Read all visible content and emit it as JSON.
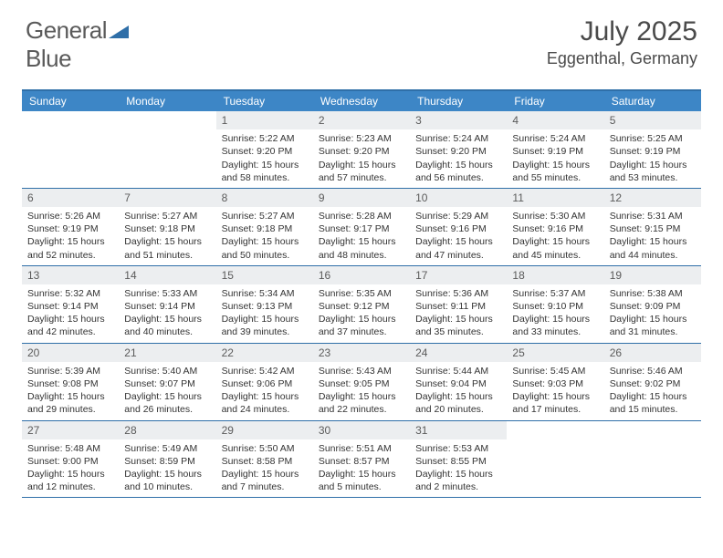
{
  "brand": {
    "part1": "General",
    "part2": "Blue"
  },
  "title": "July 2025",
  "location": "Eggenthal, Germany",
  "colors": {
    "header_bg": "#3d86c6",
    "border": "#2f6fa8",
    "daynum_bg": "#eceef0",
    "text": "#333333",
    "brand_grey": "#5a5a5a",
    "brand_blue": "#2f6fa8"
  },
  "day_headers": [
    "Sunday",
    "Monday",
    "Tuesday",
    "Wednesday",
    "Thursday",
    "Friday",
    "Saturday"
  ],
  "weeks": [
    [
      {
        "n": "",
        "sr": "",
        "ss": "",
        "dl": "",
        "empty": true
      },
      {
        "n": "",
        "sr": "",
        "ss": "",
        "dl": "",
        "empty": true
      },
      {
        "n": "1",
        "sr": "5:22 AM",
        "ss": "9:20 PM",
        "dl": "15 hours and 58 minutes."
      },
      {
        "n": "2",
        "sr": "5:23 AM",
        "ss": "9:20 PM",
        "dl": "15 hours and 57 minutes."
      },
      {
        "n": "3",
        "sr": "5:24 AM",
        "ss": "9:20 PM",
        "dl": "15 hours and 56 minutes."
      },
      {
        "n": "4",
        "sr": "5:24 AM",
        "ss": "9:19 PM",
        "dl": "15 hours and 55 minutes."
      },
      {
        "n": "5",
        "sr": "5:25 AM",
        "ss": "9:19 PM",
        "dl": "15 hours and 53 minutes."
      }
    ],
    [
      {
        "n": "6",
        "sr": "5:26 AM",
        "ss": "9:19 PM",
        "dl": "15 hours and 52 minutes."
      },
      {
        "n": "7",
        "sr": "5:27 AM",
        "ss": "9:18 PM",
        "dl": "15 hours and 51 minutes."
      },
      {
        "n": "8",
        "sr": "5:27 AM",
        "ss": "9:18 PM",
        "dl": "15 hours and 50 minutes."
      },
      {
        "n": "9",
        "sr": "5:28 AM",
        "ss": "9:17 PM",
        "dl": "15 hours and 48 minutes."
      },
      {
        "n": "10",
        "sr": "5:29 AM",
        "ss": "9:16 PM",
        "dl": "15 hours and 47 minutes."
      },
      {
        "n": "11",
        "sr": "5:30 AM",
        "ss": "9:16 PM",
        "dl": "15 hours and 45 minutes."
      },
      {
        "n": "12",
        "sr": "5:31 AM",
        "ss": "9:15 PM",
        "dl": "15 hours and 44 minutes."
      }
    ],
    [
      {
        "n": "13",
        "sr": "5:32 AM",
        "ss": "9:14 PM",
        "dl": "15 hours and 42 minutes."
      },
      {
        "n": "14",
        "sr": "5:33 AM",
        "ss": "9:14 PM",
        "dl": "15 hours and 40 minutes."
      },
      {
        "n": "15",
        "sr": "5:34 AM",
        "ss": "9:13 PM",
        "dl": "15 hours and 39 minutes."
      },
      {
        "n": "16",
        "sr": "5:35 AM",
        "ss": "9:12 PM",
        "dl": "15 hours and 37 minutes."
      },
      {
        "n": "17",
        "sr": "5:36 AM",
        "ss": "9:11 PM",
        "dl": "15 hours and 35 minutes."
      },
      {
        "n": "18",
        "sr": "5:37 AM",
        "ss": "9:10 PM",
        "dl": "15 hours and 33 minutes."
      },
      {
        "n": "19",
        "sr": "5:38 AM",
        "ss": "9:09 PM",
        "dl": "15 hours and 31 minutes."
      }
    ],
    [
      {
        "n": "20",
        "sr": "5:39 AM",
        "ss": "9:08 PM",
        "dl": "15 hours and 29 minutes."
      },
      {
        "n": "21",
        "sr": "5:40 AM",
        "ss": "9:07 PM",
        "dl": "15 hours and 26 minutes."
      },
      {
        "n": "22",
        "sr": "5:42 AM",
        "ss": "9:06 PM",
        "dl": "15 hours and 24 minutes."
      },
      {
        "n": "23",
        "sr": "5:43 AM",
        "ss": "9:05 PM",
        "dl": "15 hours and 22 minutes."
      },
      {
        "n": "24",
        "sr": "5:44 AM",
        "ss": "9:04 PM",
        "dl": "15 hours and 20 minutes."
      },
      {
        "n": "25",
        "sr": "5:45 AM",
        "ss": "9:03 PM",
        "dl": "15 hours and 17 minutes."
      },
      {
        "n": "26",
        "sr": "5:46 AM",
        "ss": "9:02 PM",
        "dl": "15 hours and 15 minutes."
      }
    ],
    [
      {
        "n": "27",
        "sr": "5:48 AM",
        "ss": "9:00 PM",
        "dl": "15 hours and 12 minutes."
      },
      {
        "n": "28",
        "sr": "5:49 AM",
        "ss": "8:59 PM",
        "dl": "15 hours and 10 minutes."
      },
      {
        "n": "29",
        "sr": "5:50 AM",
        "ss": "8:58 PM",
        "dl": "15 hours and 7 minutes."
      },
      {
        "n": "30",
        "sr": "5:51 AM",
        "ss": "8:57 PM",
        "dl": "15 hours and 5 minutes."
      },
      {
        "n": "31",
        "sr": "5:53 AM",
        "ss": "8:55 PM",
        "dl": "15 hours and 2 minutes."
      },
      {
        "n": "",
        "sr": "",
        "ss": "",
        "dl": "",
        "empty": true
      },
      {
        "n": "",
        "sr": "",
        "ss": "",
        "dl": "",
        "empty": true
      }
    ]
  ],
  "labels": {
    "sunrise": "Sunrise: ",
    "sunset": "Sunset: ",
    "daylight": "Daylight: "
  }
}
